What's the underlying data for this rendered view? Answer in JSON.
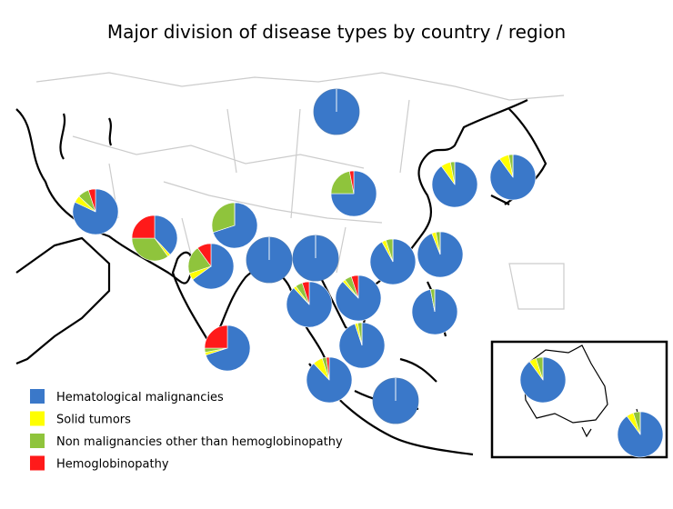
{
  "chart_data": {
    "type": "pie-map",
    "title": "Major division of disease types by country / region",
    "series": [
      {
        "name": "Hematological malignancies",
        "color": "#3a78c9"
      },
      {
        "name": "Solid tumors",
        "color": "#ffff00"
      },
      {
        "name": "Non malignancies other than hemoglobinopathy",
        "color": "#8fc43c"
      },
      {
        "name": "Hemoglobinopathy",
        "color": "#ff1a1a"
      }
    ],
    "pies": [
      {
        "values": [
          100,
          0,
          0,
          0
        ]
      },
      {
        "values": [
          82,
          5,
          8,
          5
        ]
      },
      {
        "values": [
          38,
          2,
          35,
          25
        ]
      },
      {
        "values": [
          70,
          0,
          30,
          0
        ]
      },
      {
        "values": [
          65,
          5,
          20,
          10
        ]
      },
      {
        "values": [
          75,
          0,
          22,
          3
        ]
      },
      {
        "values": [
          90,
          7,
          3,
          0
        ]
      },
      {
        "values": [
          90,
          7,
          3,
          0
        ]
      },
      {
        "values": [
          100,
          0,
          0,
          0
        ]
      },
      {
        "values": [
          100,
          0,
          0,
          0
        ]
      },
      {
        "values": [
          92,
          3,
          5,
          0
        ]
      },
      {
        "values": [
          94,
          3,
          3,
          0
        ]
      },
      {
        "values": [
          70,
          2,
          3,
          25
        ]
      },
      {
        "values": [
          88,
          2,
          5,
          5
        ]
      },
      {
        "values": [
          88,
          2,
          5,
          5
        ]
      },
      {
        "values": [
          97,
          0,
          3,
          0
        ]
      },
      {
        "values": [
          95,
          2,
          3,
          0
        ]
      },
      {
        "values": [
          88,
          7,
          3,
          2
        ]
      },
      {
        "values": [
          100,
          0,
          0,
          0
        ]
      },
      {
        "values": [
          90,
          5,
          5,
          0
        ]
      },
      {
        "values": [
          90,
          5,
          5,
          0
        ]
      }
    ]
  }
}
